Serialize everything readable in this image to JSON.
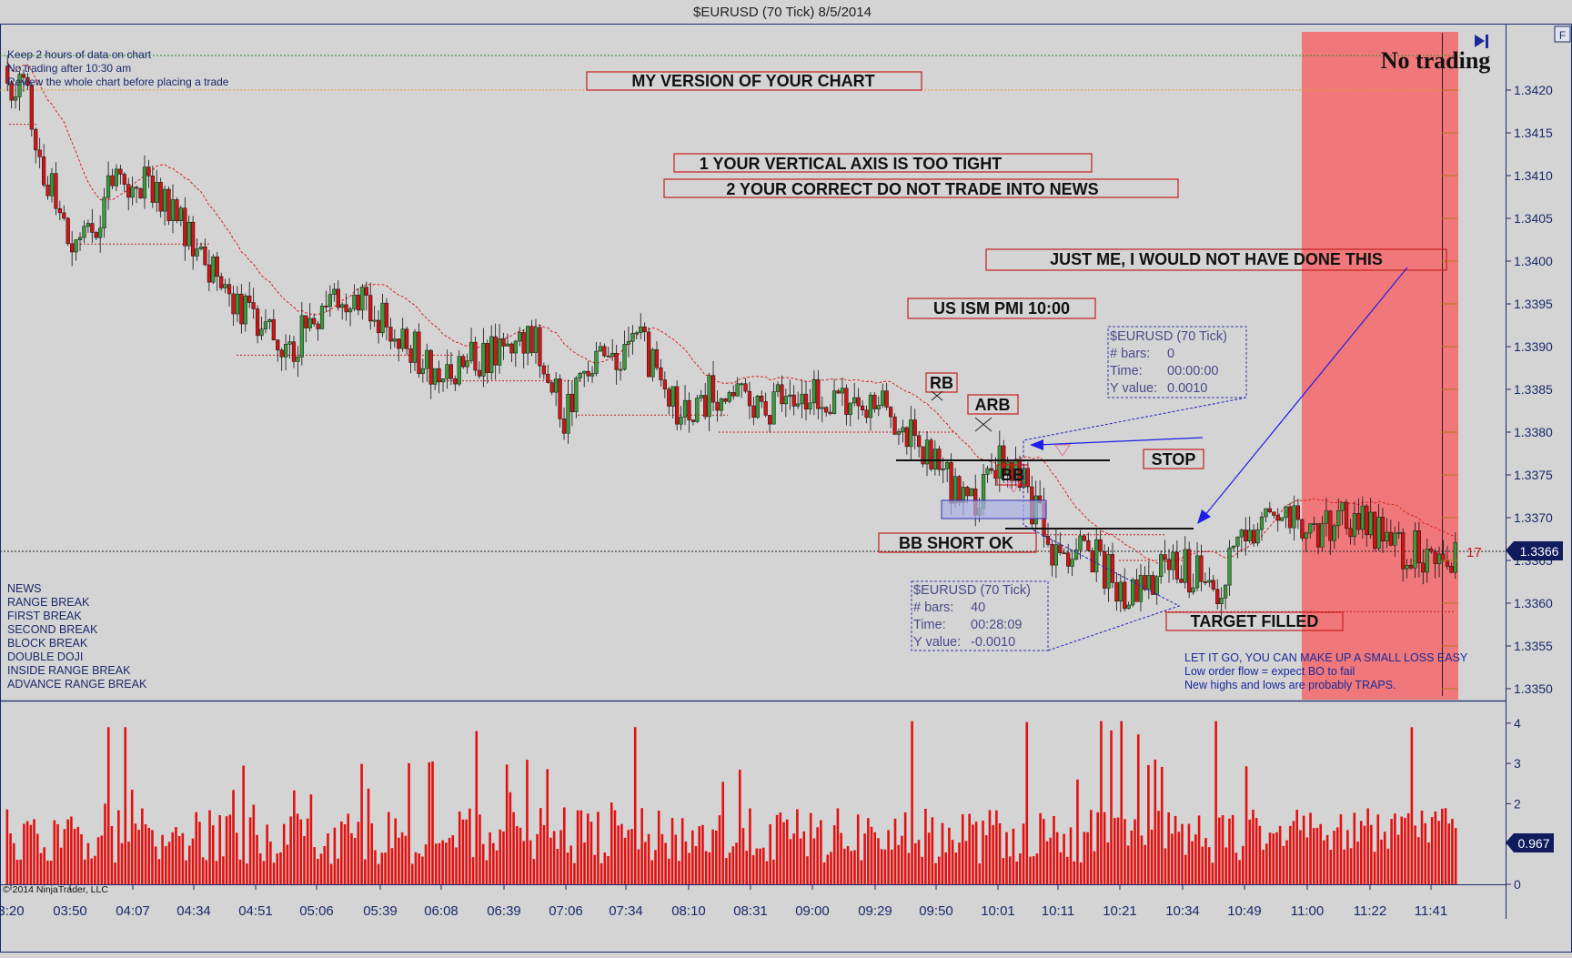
{
  "window": {
    "title": "$EURUSD (70 Tick)  8/5/2014",
    "f_button": "F"
  },
  "notes_top": [
    "Keep 2 hours of data on chart",
    "No trading after 10:30 am",
    "Review the whole chart before placing a trade"
  ],
  "legend_left": [
    "NEWS",
    "RANGE BREAK",
    "FIRST BREAK",
    "SECOND BREAK",
    "BLOCK BREAK",
    "DOUBLE DOJI",
    "INSIDE RANGE BREAK",
    "ADVANCE RANGE BREAK"
  ],
  "annotations": {
    "my_version": "MY VERSION OF YOUR CHART",
    "axis_tight": "1 YOUR VERTICAL AXIS IS TOO TIGHT",
    "do_not_trade": "2 YOUR CORRECT DO NOT TRADE INTO NEWS",
    "just_me": "JUST ME, I WOULD NOT HAVE DONE THIS",
    "ism": "US ISM PMI 10:00",
    "rb": "RB",
    "arb": "ARB",
    "bb": "BB",
    "stop": "STOP",
    "bb_short": "BB SHORT OK",
    "target": "TARGET FILLED",
    "no_trading": "No trading",
    "let_it_go": [
      "LET IT GO, YOU CAN MAKE UP A SMALL LOSS EASY",
      "Low order flow = expect BO to fail",
      "New highs and lows are probably TRAPS."
    ],
    "marker_17": "17"
  },
  "measure_boxes": [
    {
      "title": "$EURUSD (70 Tick)",
      "bars_label": "# bars:",
      "bars": "0",
      "time_label": "Time:",
      "time": "00:00:00",
      "y_label": "Y value:",
      "y": "0.0010"
    },
    {
      "title": "$EURUSD (70 Tick)",
      "bars_label": "# bars:",
      "bars": "40",
      "time_label": "Time:",
      "time": "00:28:09",
      "y_label": "Y value:",
      "y": "-0.0010"
    }
  ],
  "copyright": "© 2014 NinjaTrader, LLC",
  "price_panel": {
    "current_price": "1.3366",
    "y_ticks": [
      "1.3420",
      "1.3415",
      "1.3410",
      "1.3405",
      "1.3400",
      "1.3395",
      "1.3390",
      "1.3385",
      "1.3380",
      "1.3375",
      "1.3370",
      "1.3365",
      "1.3360",
      "1.3355",
      "1.3350"
    ]
  },
  "volume_panel": {
    "current_value": "0.967",
    "y_ticks": [
      "4",
      "3",
      "2",
      "1",
      "0"
    ]
  },
  "x_ticks": [
    "3:20",
    "03:50",
    "04:07",
    "04:34",
    "04:51",
    "05:06",
    "05:39",
    "06:08",
    "06:39",
    "07:06",
    "07:34",
    "08:10",
    "08:31",
    "09:00",
    "09:29",
    "09:50",
    "10:01",
    "10:11",
    "10:21",
    "10:34",
    "10:49",
    "11:00",
    "11:22",
    "11:41"
  ],
  "colors": {
    "background": "#d4d4d4",
    "up_candle": "#3a9a3a",
    "down_candle": "#d11414",
    "volume": "#e31010",
    "no_trade_zone": "#f0787a",
    "axis_text": "#1a2a6c",
    "label_text": "#111111",
    "label_border": "#c81e1e",
    "arrow": "#1e1ee6"
  },
  "chart_data": [
    {
      "type": "candlestick",
      "title": "$EURUSD (70 Tick)  8/5/2014",
      "ylim": [
        1.3349,
        1.3428
      ],
      "x_ticks": [
        "3:20",
        "03:50",
        "04:07",
        "04:34",
        "04:51",
        "05:06",
        "05:39",
        "06:08",
        "06:39",
        "07:06",
        "07:34",
        "08:10",
        "08:31",
        "09:00",
        "09:29",
        "09:50",
        "10:01",
        "10:11",
        "10:21",
        "10:34",
        "10:49",
        "11:00",
        "11:22",
        "11:41"
      ],
      "close_path_anchors": [
        [
          0,
          1.3422
        ],
        [
          0.015,
          1.3418
        ],
        [
          0.03,
          1.3408
        ],
        [
          0.05,
          1.3401
        ],
        [
          0.07,
          1.3408
        ],
        [
          0.09,
          1.341
        ],
        [
          0.11,
          1.3407
        ],
        [
          0.13,
          1.3402
        ],
        [
          0.15,
          1.3397
        ],
        [
          0.17,
          1.3393
        ],
        [
          0.19,
          1.3389
        ],
        [
          0.21,
          1.3393
        ],
        [
          0.24,
          1.3396
        ],
        [
          0.27,
          1.3392
        ],
        [
          0.3,
          1.3386
        ],
        [
          0.33,
          1.3389
        ],
        [
          0.36,
          1.3392
        ],
        [
          0.385,
          1.3382
        ],
        [
          0.41,
          1.3388
        ],
        [
          0.44,
          1.339
        ],
        [
          0.465,
          1.3381
        ],
        [
          0.49,
          1.3385
        ],
        [
          0.52,
          1.3383
        ],
        [
          0.55,
          1.3384
        ],
        [
          0.59,
          1.3384
        ],
        [
          0.615,
          1.3382
        ],
        [
          0.64,
          1.3377
        ],
        [
          0.665,
          1.3371
        ],
        [
          0.685,
          1.3376
        ],
        [
          0.7,
          1.3374
        ],
        [
          0.725,
          1.3365
        ],
        [
          0.75,
          1.3366
        ],
        [
          0.775,
          1.336
        ],
        [
          0.8,
          1.3365
        ],
        [
          0.835,
          1.3362
        ],
        [
          0.86,
          1.3369
        ],
        [
          0.885,
          1.337
        ],
        [
          0.905,
          1.3368
        ],
        [
          0.925,
          1.337
        ],
        [
          0.94,
          1.3369
        ],
        [
          0.955,
          1.3368
        ],
        [
          0.965,
          1.3366
        ]
      ],
      "moving_average": "red, lagged close"
    },
    {
      "type": "bar",
      "title": "",
      "ylim": [
        0,
        4.2
      ],
      "series": [
        {
          "values_note": "volume ratio per bar, mostly 0.5–2, spikes to ~4"
        }
      ]
    }
  ]
}
